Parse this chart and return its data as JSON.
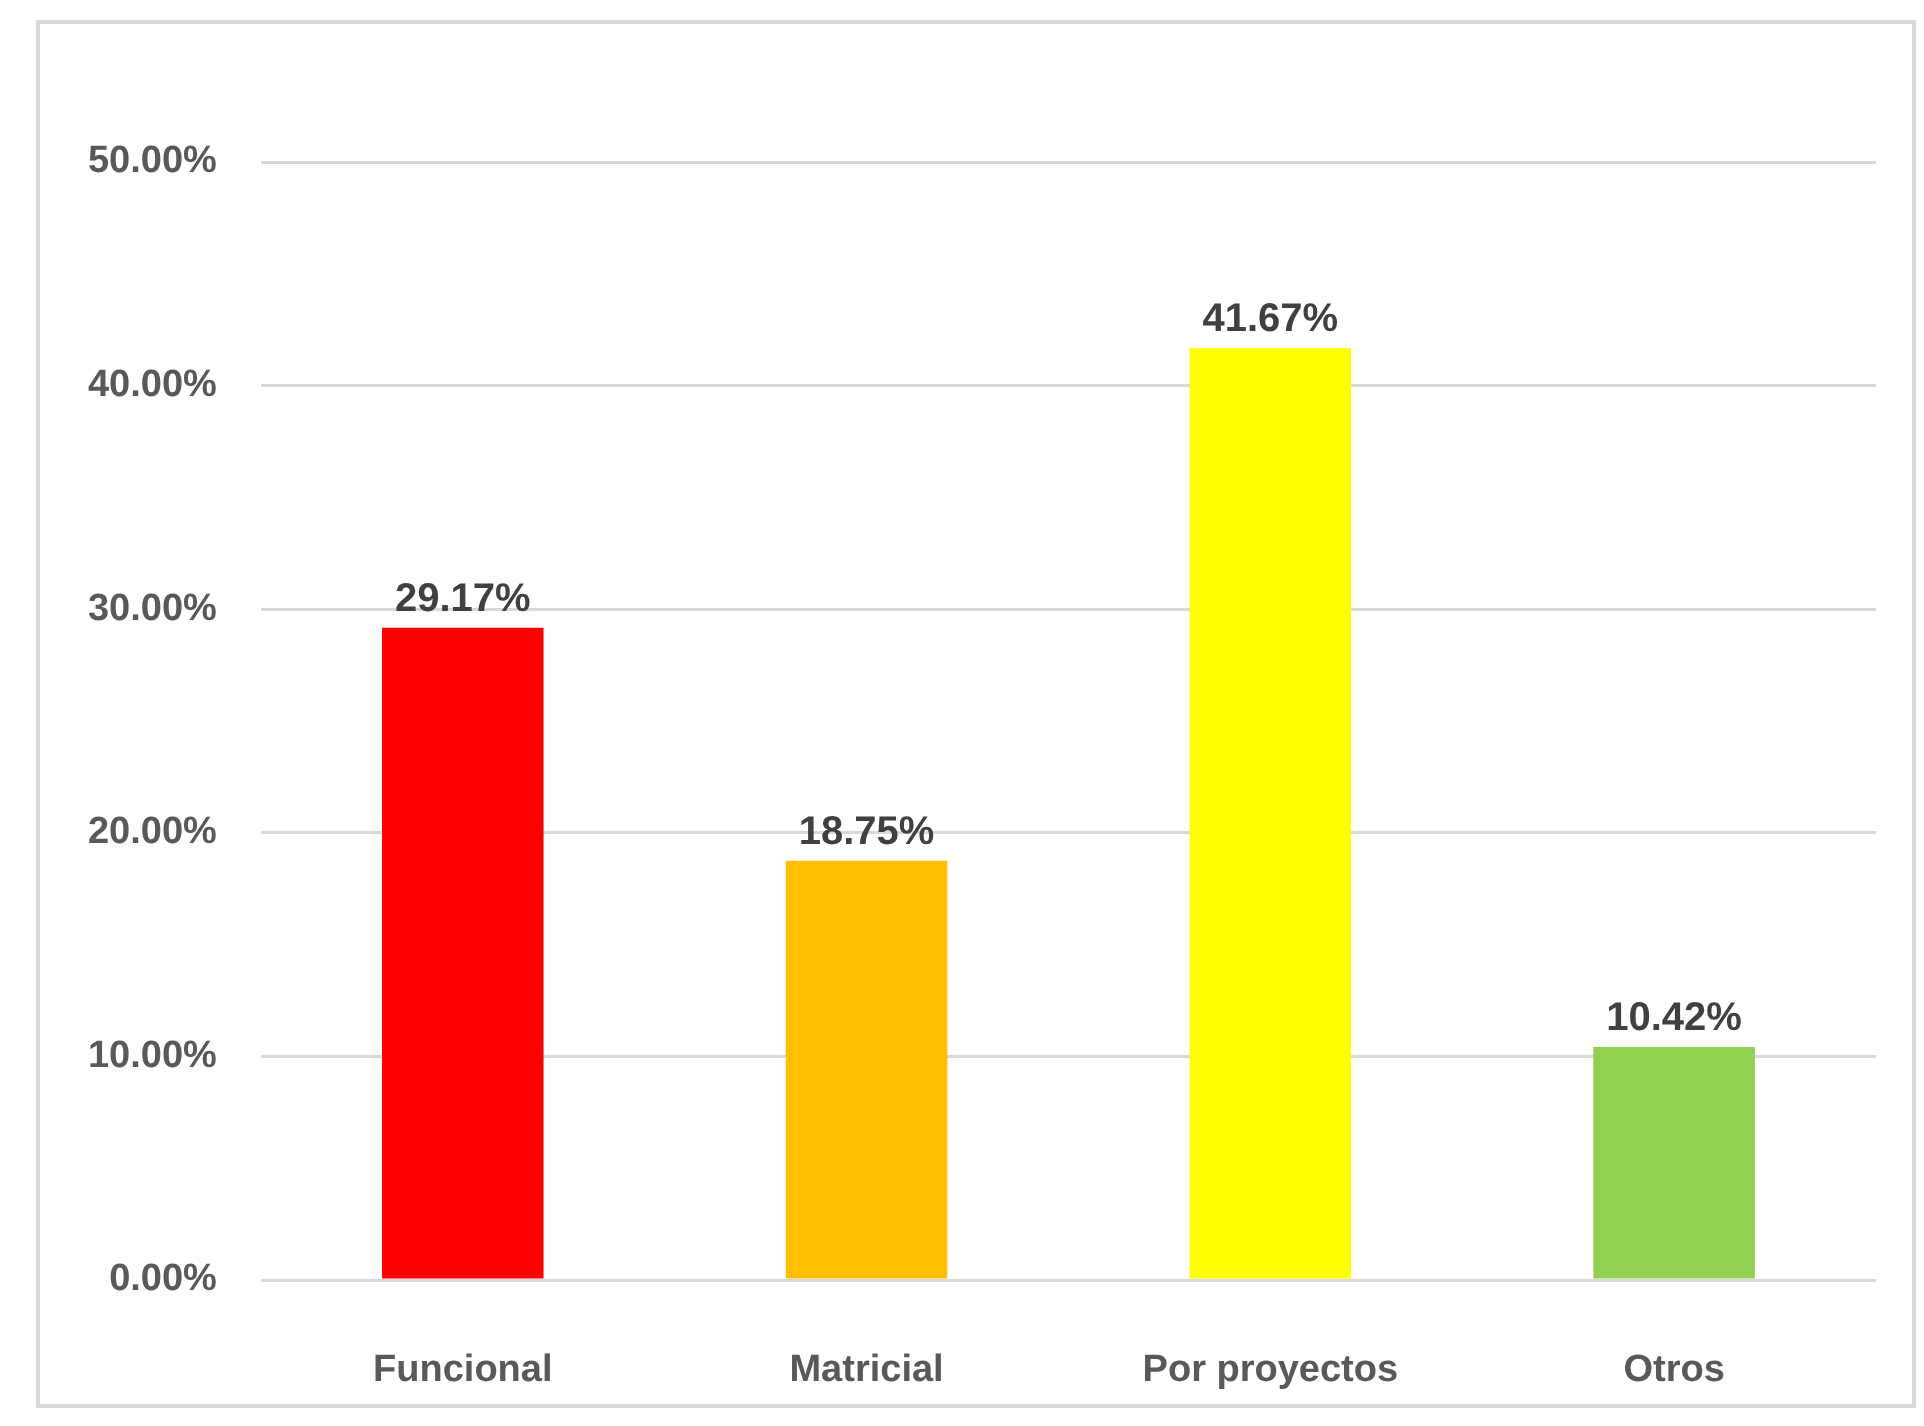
{
  "chart_data": {
    "type": "bar",
    "categories": [
      "Funcional",
      "Matricial",
      "Por proyectos",
      "Otros"
    ],
    "values": [
      29.17,
      18.75,
      41.67,
      10.42
    ],
    "colors": [
      "#ff0000",
      "#ffc000",
      "#ffff00",
      "#92d050"
    ],
    "value_labels": [
      "29.17%",
      "18.75%",
      "41.67%",
      "10.42%"
    ],
    "ylim": [
      0,
      50
    ],
    "yticks": [
      {
        "value": 0,
        "label": "0.00%"
      },
      {
        "value": 10,
        "label": "10.00%"
      },
      {
        "value": 20,
        "label": "20.00%"
      },
      {
        "value": 30,
        "label": "30.00%"
      },
      {
        "value": 40,
        "label": "40.00%"
      },
      {
        "value": 50,
        "label": "50.00%"
      }
    ],
    "grid": "y"
  }
}
